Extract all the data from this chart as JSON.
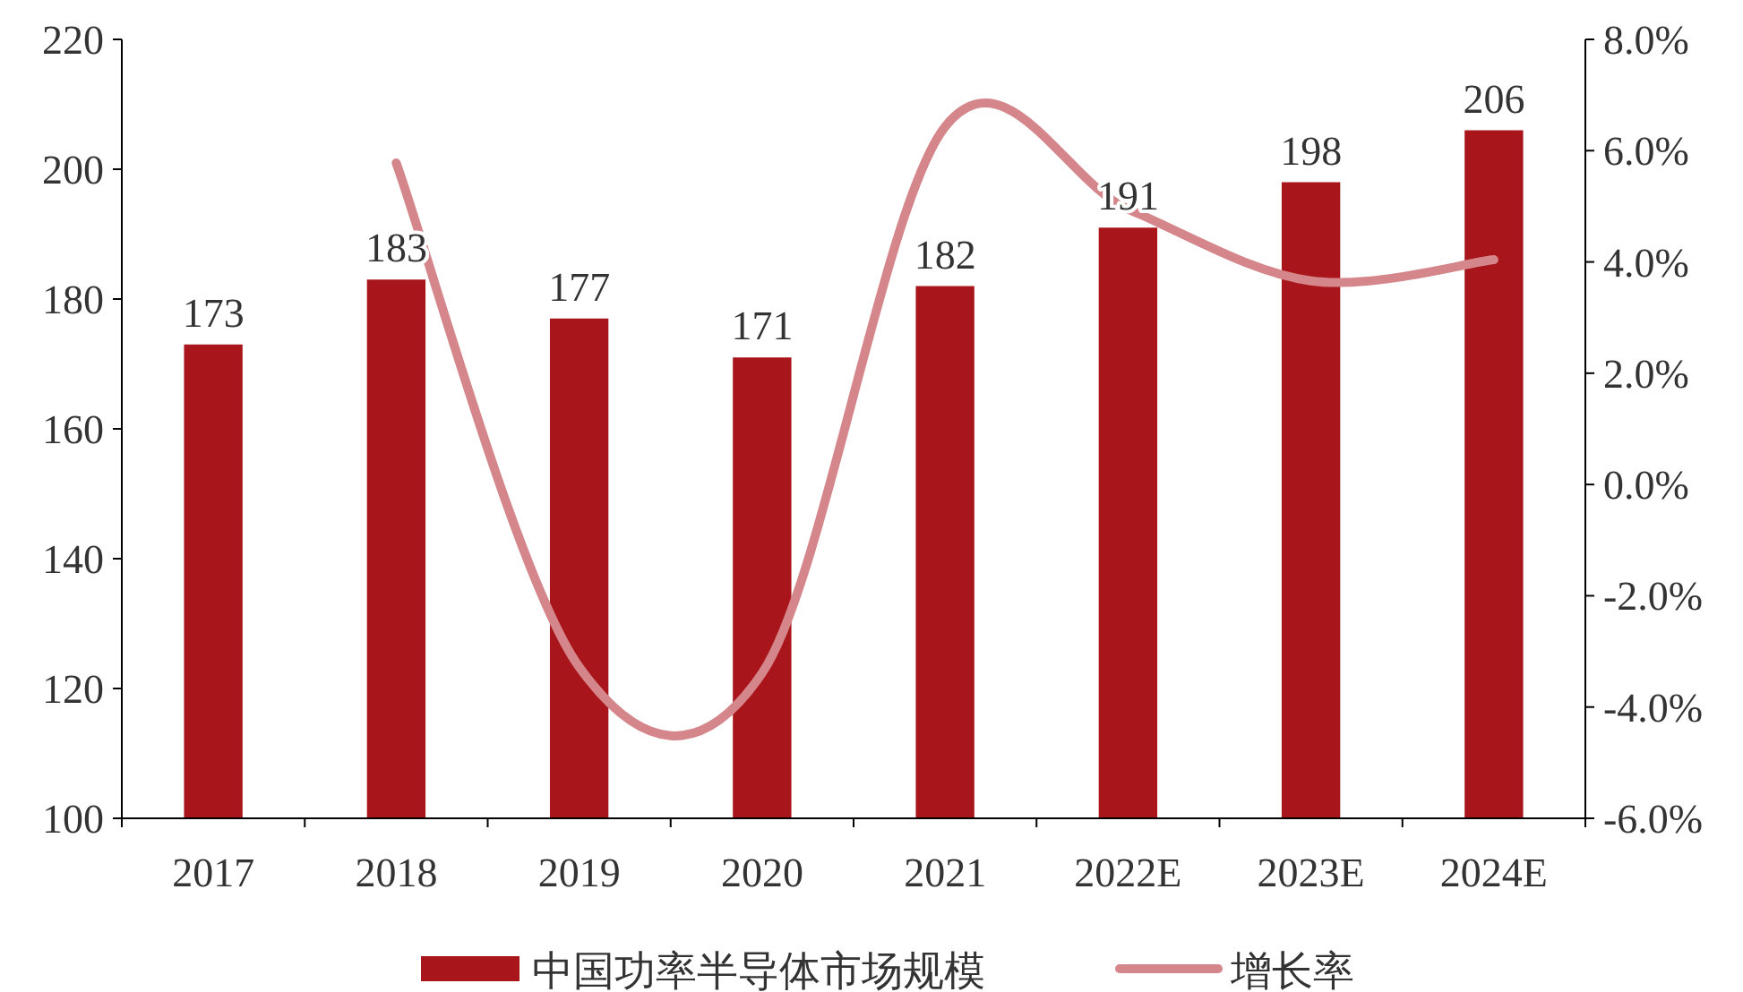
{
  "chart_data": {
    "type": "bar",
    "categories": [
      "2017",
      "2018",
      "2019",
      "2020",
      "2021",
      "2022E",
      "2023E",
      "2024E"
    ],
    "series": [
      {
        "name": "中国功率半导体市场规模",
        "color": "#a8161c",
        "values": [
          173,
          183,
          177,
          171,
          182,
          191,
          198,
          206
        ],
        "value_labels": [
          "173",
          "183",
          "177",
          "171",
          "182",
          "191",
          "198",
          "206"
        ]
      },
      {
        "name": "增长率",
        "type": "line",
        "axis": "y2",
        "color": "#d4868a",
        "line_style": "solid",
        "marker": "none",
        "values": [
          null,
          5.78,
          -3.28,
          -3.39,
          6.43,
          4.95,
          3.66,
          4.04
        ]
      }
    ],
    "ylim": [
      100,
      220
    ],
    "yticks": [
      100,
      120,
      140,
      160,
      180,
      200,
      220
    ],
    "y2lim": [
      -6,
      8
    ],
    "y2ticks": [
      {
        "value": -6,
        "label": "-6.0%"
      },
      {
        "value": -4,
        "label": "-4.0%"
      },
      {
        "value": -2,
        "label": "-2.0%"
      },
      {
        "value": 0,
        "label": "0.0%"
      },
      {
        "value": 2,
        "label": "2.0%"
      },
      {
        "value": 4,
        "label": "4.0%"
      },
      {
        "value": 6,
        "label": "6.0%"
      },
      {
        "value": 8,
        "label": "8.0%"
      }
    ],
    "grid": false,
    "legend": "bottom"
  }
}
